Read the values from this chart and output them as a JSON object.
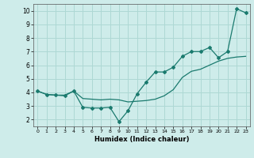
{
  "xlabel": "Humidex (Indice chaleur)",
  "background_color": "#ceecea",
  "grid_color": "#aed8d4",
  "line_color": "#1a7a6e",
  "xlim": [
    -0.5,
    23.5
  ],
  "ylim": [
    1.5,
    10.5
  ],
  "xticks": [
    0,
    1,
    2,
    3,
    4,
    5,
    6,
    7,
    8,
    9,
    10,
    11,
    12,
    13,
    14,
    15,
    16,
    17,
    18,
    19,
    20,
    21,
    22,
    23
  ],
  "yticks": [
    2,
    3,
    4,
    5,
    6,
    7,
    8,
    9,
    10
  ],
  "series1_x": [
    0,
    1,
    2,
    3,
    4,
    5,
    6,
    7,
    8,
    9,
    10,
    11,
    12,
    13,
    14,
    15,
    16,
    17,
    18,
    19,
    20,
    21,
    22,
    23
  ],
  "series1_y": [
    4.1,
    3.85,
    3.8,
    3.8,
    4.1,
    3.55,
    3.5,
    3.45,
    3.5,
    3.45,
    3.3,
    3.35,
    3.4,
    3.5,
    3.75,
    4.2,
    5.1,
    5.55,
    5.7,
    6.0,
    6.3,
    6.5,
    6.6,
    6.65
  ],
  "series2_x": [
    0,
    1,
    2,
    3,
    4,
    5,
    6,
    7,
    8,
    9,
    10,
    11,
    12,
    13,
    14,
    15,
    16,
    17,
    18,
    19,
    20,
    21,
    22,
    23
  ],
  "series2_y": [
    4.1,
    3.85,
    3.8,
    3.75,
    4.1,
    2.9,
    2.85,
    2.85,
    2.9,
    1.85,
    2.65,
    3.9,
    4.75,
    5.5,
    5.5,
    5.85,
    6.65,
    7.0,
    7.0,
    7.3,
    6.55,
    7.0,
    10.15,
    9.85
  ]
}
